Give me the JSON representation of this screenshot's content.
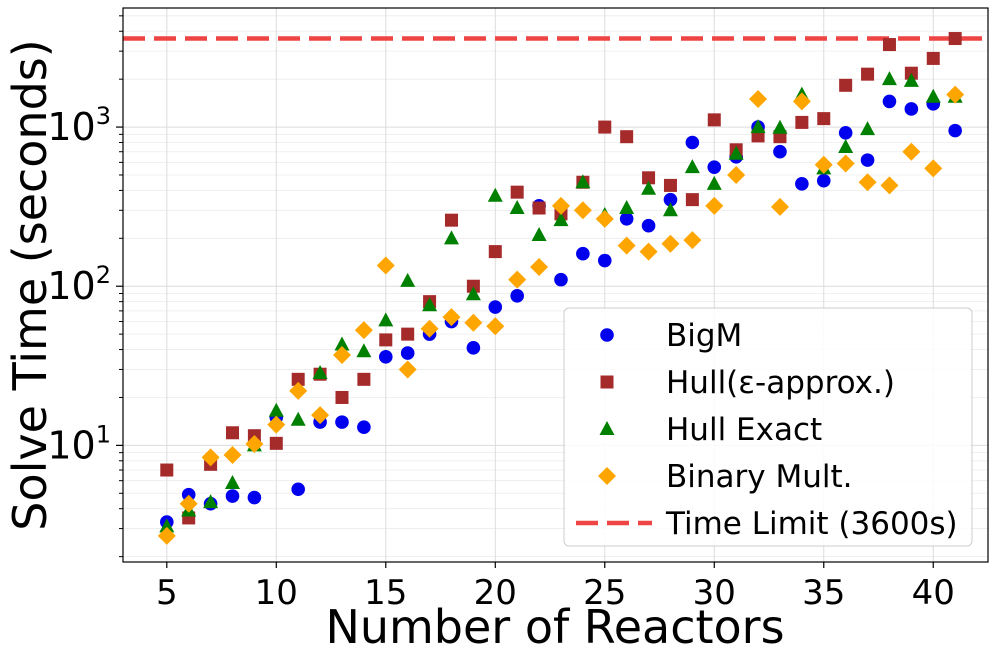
{
  "chart_data": {
    "type": "scatter",
    "xlabel": "Number of Reactors",
    "ylabel": "Solve Time (seconds)",
    "xscale": "linear",
    "yscale": "log",
    "xlim": [
      3.0,
      42.5
    ],
    "ylim": [
      1.85,
      5600
    ],
    "grid": true,
    "legend_position": "bottom-right",
    "x_ticks": [
      5,
      10,
      15,
      20,
      25,
      30,
      35,
      40
    ],
    "y_ticks": [
      {
        "value": 10,
        "base": "10",
        "exp": "1"
      },
      {
        "value": 100,
        "base": "10",
        "exp": "2"
      },
      {
        "value": 1000,
        "base": "10",
        "exp": "3"
      }
    ],
    "series": [
      {
        "name": "BigM",
        "marker": "circle",
        "color": "#0000ee",
        "x": [
          5,
          6,
          7,
          8,
          9,
          10,
          11,
          12,
          13,
          14,
          15,
          16,
          17,
          18,
          19,
          20,
          21,
          22,
          23,
          24,
          25,
          26,
          27,
          28,
          29,
          30,
          31,
          32,
          33,
          34,
          35,
          36,
          37,
          38,
          39,
          40,
          41
        ],
        "y": [
          3.3,
          4.9,
          4.3,
          4.8,
          4.7,
          15,
          5.3,
          14,
          14,
          13,
          36,
          38,
          50,
          60,
          41,
          74,
          87,
          320,
          110,
          160,
          145,
          265,
          240,
          350,
          800,
          560,
          650,
          1000,
          700,
          440,
          460,
          920,
          620,
          1450,
          1300,
          1400,
          950
        ]
      },
      {
        "name": "Hull(ε-approx.)",
        "marker": "square",
        "color": "#a52a2a",
        "x": [
          5,
          6,
          7,
          8,
          9,
          10,
          11,
          12,
          13,
          14,
          15,
          16,
          17,
          18,
          19,
          20,
          21,
          22,
          23,
          24,
          25,
          26,
          27,
          28,
          29,
          30,
          31,
          32,
          33,
          34,
          35,
          36,
          37,
          38,
          39,
          40,
          41
        ],
        "y": [
          7,
          3.5,
          7.6,
          12,
          11.5,
          10.3,
          26,
          28,
          20,
          26,
          46,
          50,
          80,
          260,
          100,
          165,
          390,
          310,
          285,
          450,
          1000,
          870,
          480,
          430,
          350,
          1110,
          720,
          880,
          870,
          1070,
          1130,
          1830,
          2150,
          3300,
          2180,
          2700,
          3600
        ]
      },
      {
        "name": "Hull Exact",
        "marker": "triangle",
        "color": "#008000",
        "x": [
          5,
          6,
          7,
          8,
          9,
          10,
          11,
          12,
          13,
          14,
          15,
          16,
          17,
          18,
          19,
          20,
          21,
          22,
          23,
          24,
          25,
          26,
          27,
          28,
          29,
          30,
          31,
          32,
          33,
          34,
          35,
          36,
          37,
          38,
          39,
          40,
          41
        ],
        "y": [
          3.1,
          3.9,
          4.4,
          5.8,
          10,
          16.5,
          14.5,
          28.5,
          43,
          39,
          61,
          108,
          76,
          200,
          89,
          370,
          310,
          210,
          260,
          450,
          280,
          310,
          410,
          300,
          560,
          440,
          680,
          1000,
          990,
          1600,
          550,
          750,
          970,
          2000,
          1950,
          1550,
          1550
        ]
      },
      {
        "name": "Binary Mult.",
        "marker": "diamond",
        "color": "#ffa500",
        "x": [
          5,
          6,
          7,
          8,
          9,
          10,
          11,
          12,
          13,
          14,
          15,
          16,
          17,
          18,
          19,
          20,
          21,
          22,
          23,
          24,
          25,
          26,
          27,
          28,
          29,
          30,
          31,
          32,
          33,
          34,
          35,
          36,
          37,
          38,
          39,
          40,
          41
        ],
        "y": [
          2.7,
          4.3,
          8.4,
          8.7,
          10.2,
          13.5,
          22,
          15.5,
          37,
          53,
          135,
          30,
          54,
          64,
          59,
          56,
          110,
          132,
          320,
          300,
          265,
          180,
          165,
          185,
          195,
          320,
          500,
          1500,
          315,
          1450,
          580,
          590,
          450,
          430,
          700,
          550,
          1600
        ]
      }
    ],
    "reference_line": {
      "name": "Time Limit (3600s)",
      "value": 3600,
      "color": "#ef4444",
      "style": "dashed"
    }
  }
}
